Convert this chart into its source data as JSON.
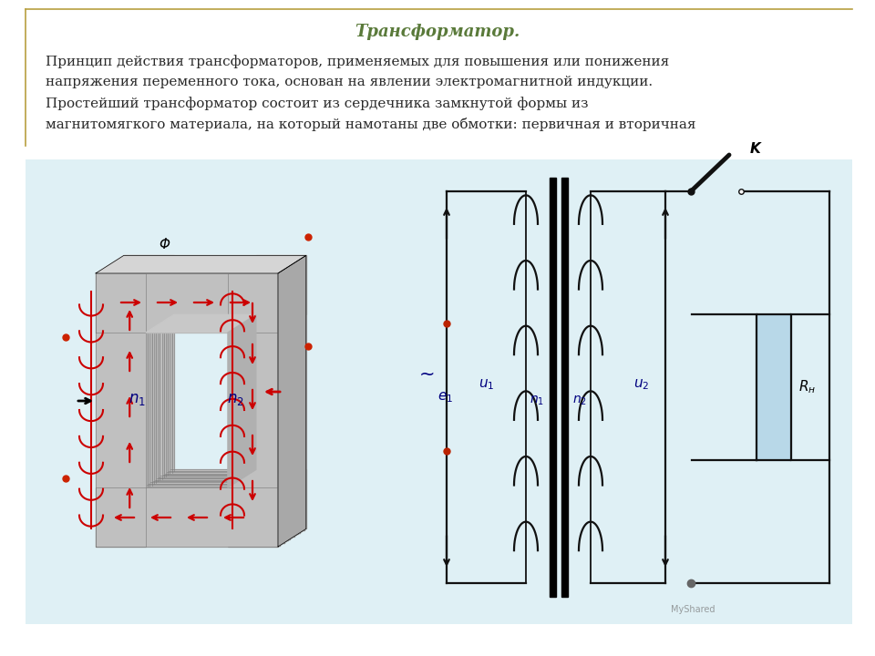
{
  "title": "Трансформатор.",
  "body_text_line1": "Принцип действия трансформаторов, применяемых для повышения или понижения",
  "body_text_line2": "напряжения переменного тока, основан на явлении электромагнитной индукции.",
  "body_text_line3": "Простейший трансформатор состоит из сердечника замкнутой формы из",
  "body_text_line4": "магнитомягкого материала, на который намотаны две обмотки: первичная и вторичная",
  "title_color": "#5a7a3a",
  "text_color": "#2a2a2a",
  "bg_color": "#ffffff",
  "diagram_bg": "#dff0f5",
  "border_color": "#b8a040",
  "circuit_color": "#111111",
  "resistor_color": "#b8d8e8",
  "label_color": "#000080",
  "flux_color": "#cc0000",
  "core_gray": "#c8c8c8",
  "core_dark": "#909090"
}
